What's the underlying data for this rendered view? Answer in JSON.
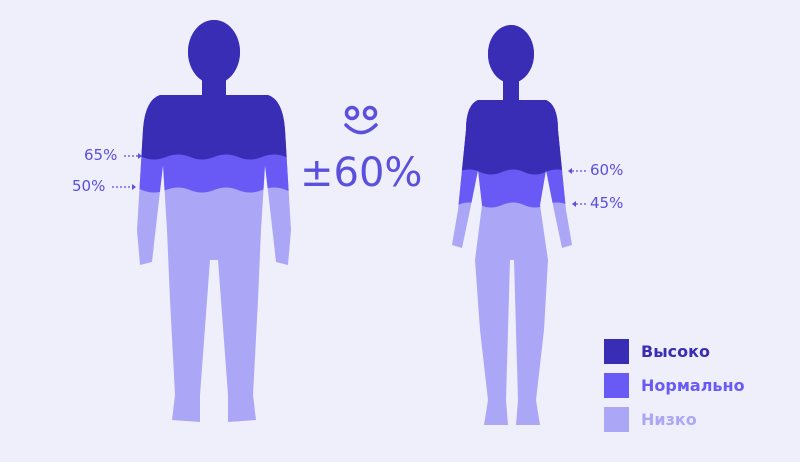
{
  "colors": {
    "high": "#3a2db5",
    "normal": "#6a5af5",
    "low": "#aca6f6",
    "background": "#efeefb",
    "text": "#5b50dc"
  },
  "male": {
    "high_label": "65%",
    "normal_label": "50%"
  },
  "female": {
    "high_label": "60%",
    "normal_label": "45%"
  },
  "center": {
    "icon": "smiley-icon",
    "value": "±60%"
  },
  "legend": [
    {
      "label": "Высоко",
      "color": "#3a2db5"
    },
    {
      "label": "Нормально",
      "color": "#6a5af5"
    },
    {
      "label": "Низко",
      "color": "#aca6f6"
    }
  ]
}
